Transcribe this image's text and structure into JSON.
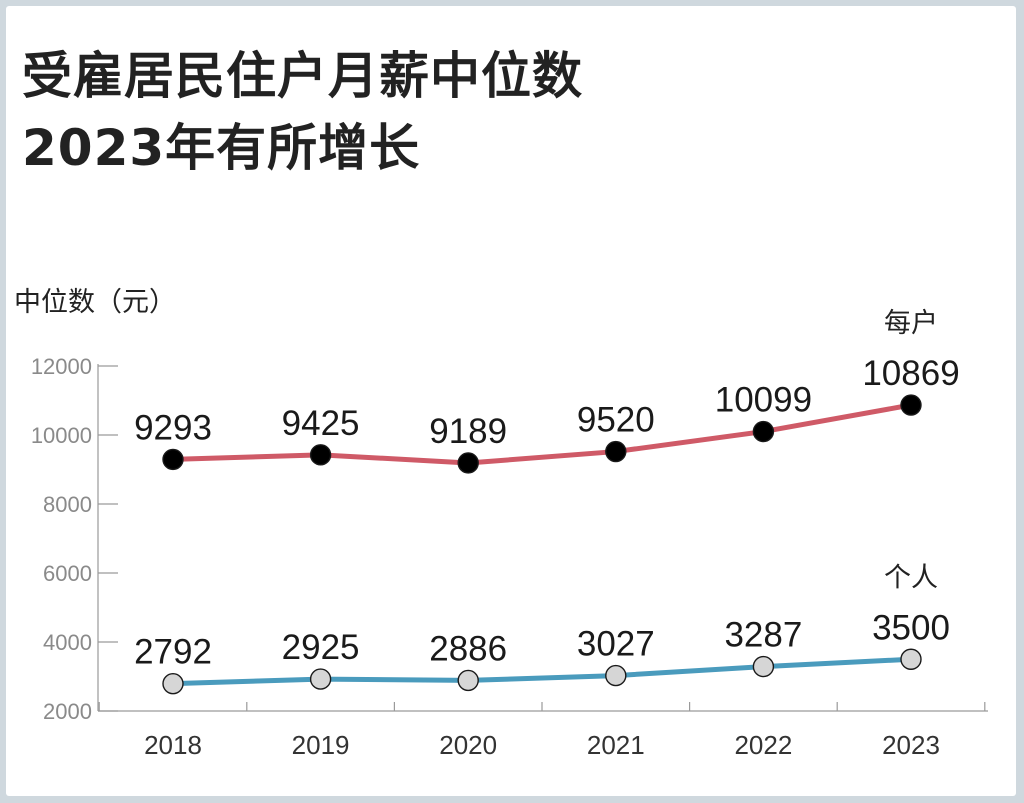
{
  "title_lines": [
    "受雇居民住户月薪中位数",
    "2023年有所增长"
  ],
  "chart_data": {
    "type": "line",
    "title": "受雇居民住户月薪中位数 2023年有所增长",
    "ylabel": "中位数（元）",
    "xlabel": "",
    "x": [
      "2018",
      "2019",
      "2020",
      "2021",
      "2022",
      "2023"
    ],
    "ylim": [
      2000,
      12000
    ],
    "yticks": [
      "2000",
      "4000",
      "6000",
      "8000",
      "10000",
      "12000"
    ],
    "grid": false,
    "series": [
      {
        "name": "每户",
        "values": [
          9293,
          9425,
          9189,
          9520,
          10099,
          10869
        ],
        "labels": [
          "9293",
          "9425",
          "9189",
          "9520",
          "10099",
          "10869"
        ],
        "line_color": "#cf5a67",
        "marker_color": "#000000"
      },
      {
        "name": "个人",
        "values": [
          2792,
          2925,
          2886,
          3027,
          3287,
          3500
        ],
        "labels": [
          "2792",
          "2925",
          "2886",
          "3027",
          "3287",
          "3500"
        ],
        "line_color": "#4a9bbd",
        "marker_color": "#d6d6d6"
      }
    ]
  }
}
